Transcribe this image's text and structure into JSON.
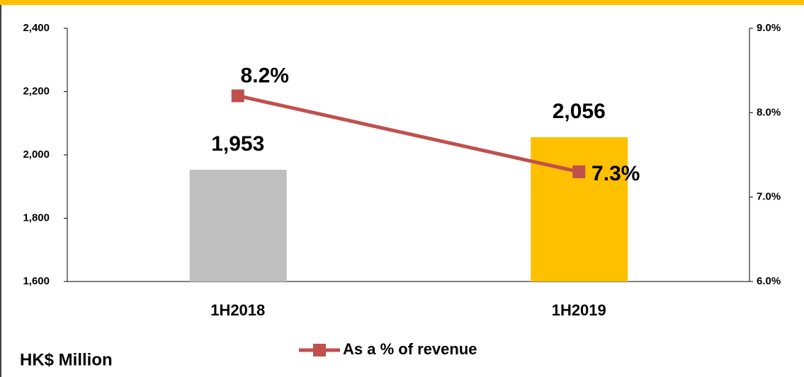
{
  "chart_data": {
    "type": "combo",
    "y_label": "HK$ Million",
    "categories": [
      "1H2018",
      "1H2019"
    ],
    "series": [
      {
        "type": "bar",
        "colors": [
          "#bfbfbf",
          "#ffc000"
        ],
        "values": [
          1953,
          2056
        ],
        "value_labels": [
          "1,953",
          "2,056"
        ]
      },
      {
        "type": "line",
        "name": "As a % of revenue",
        "axis": "y2",
        "color": "#c0504d",
        "values": [
          8.2,
          7.3
        ],
        "value_labels": [
          "8.2%",
          "7.3%"
        ]
      }
    ],
    "ylim": [
      1600,
      2400
    ],
    "yticks": [
      {
        "value": 1600,
        "label": "1,600"
      },
      {
        "value": 1800,
        "label": "1,800"
      },
      {
        "value": 2000,
        "label": "2,000"
      },
      {
        "value": 2200,
        "label": "2,200"
      },
      {
        "value": 2400,
        "label": "2,400"
      }
    ],
    "y2lim": [
      6,
      9
    ],
    "y2ticks": [
      {
        "value": 6,
        "label": "6.0%"
      },
      {
        "value": 7,
        "label": "7.0%"
      },
      {
        "value": 8,
        "label": "8.0%"
      },
      {
        "value": 9,
        "label": "9.0%"
      }
    ],
    "legend": "bottom"
  }
}
